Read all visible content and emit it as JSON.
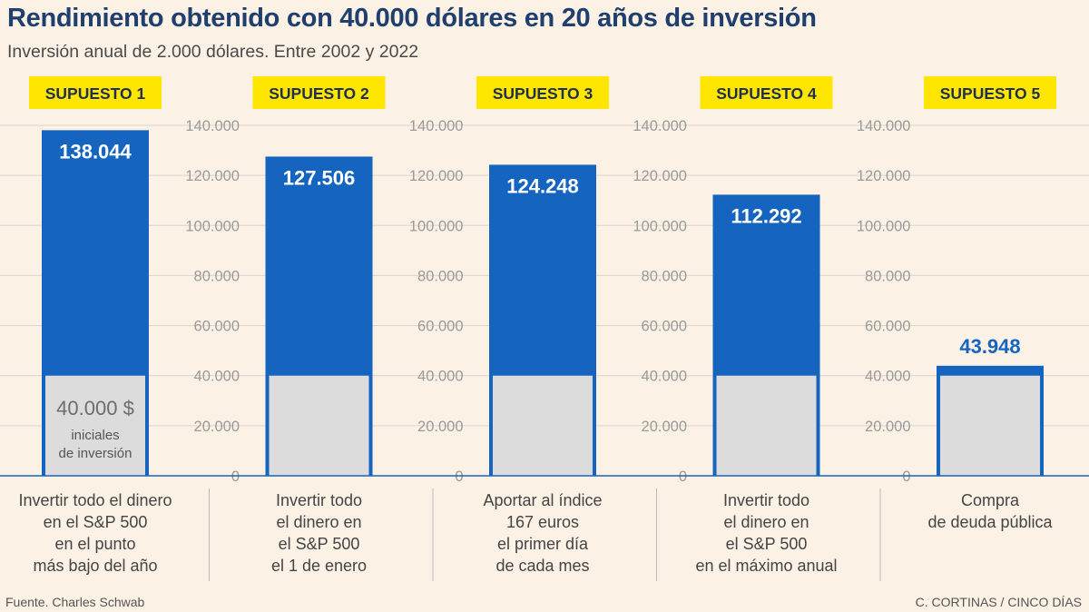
{
  "header": {
    "title": "Rendimiento obtenido con 40.000 dólares en 20 años de inversión",
    "subtitle": "Inversión anual de 2.000 dólares. Entre 2002 y 2022"
  },
  "footer": {
    "source": "Fuente. Charles Schwab",
    "credit": "C. CORTINAS / CINCO DÍAS"
  },
  "colors": {
    "background": "#fbf1e5",
    "bar_blue": "#1565c0",
    "initial_gray": "#dcdcdc",
    "label_yellow": "#ffe600",
    "value_blue": "#1565c0",
    "tick_gray": "#9a9a9a",
    "grid": "#dcd5cc"
  },
  "chart_data": {
    "type": "bar",
    "ylim": [
      0,
      140000
    ],
    "yticks": [
      0,
      20000,
      40000,
      60000,
      80000,
      100000,
      120000,
      140000
    ],
    "ytick_labels": [
      "0",
      "20.000",
      "40.000",
      "60.000",
      "80.000",
      "100.000",
      "120.000",
      "140.000"
    ],
    "initial_investment": 40000,
    "initial_label": "40.000 $",
    "initial_sublabel": [
      "iniciales",
      "de inversión"
    ],
    "categories": [
      "SUPUESTO 1",
      "SUPUESTO 2",
      "SUPUESTO 3",
      "SUPUESTO 4",
      "SUPUESTO 5"
    ],
    "values": [
      138044,
      127506,
      124248,
      112292,
      43948
    ],
    "value_labels": [
      "138.044",
      "127.506",
      "124.248",
      "112.292",
      "43.948"
    ],
    "descriptions": [
      [
        "Invertir todo el dinero",
        "en el S&P 500",
        "en el punto",
        "más bajo del año"
      ],
      [
        "Invertir todo",
        "el dinero en",
        "el S&P 500",
        "el 1 de enero"
      ],
      [
        "Aportar al índice",
        "167 euros",
        "el primer día",
        "de cada mes"
      ],
      [
        "Invertir todo",
        "el dinero en",
        "el S&P 500",
        "en el máximo anual"
      ],
      [
        "Compra",
        "de deuda pública"
      ]
    ]
  }
}
